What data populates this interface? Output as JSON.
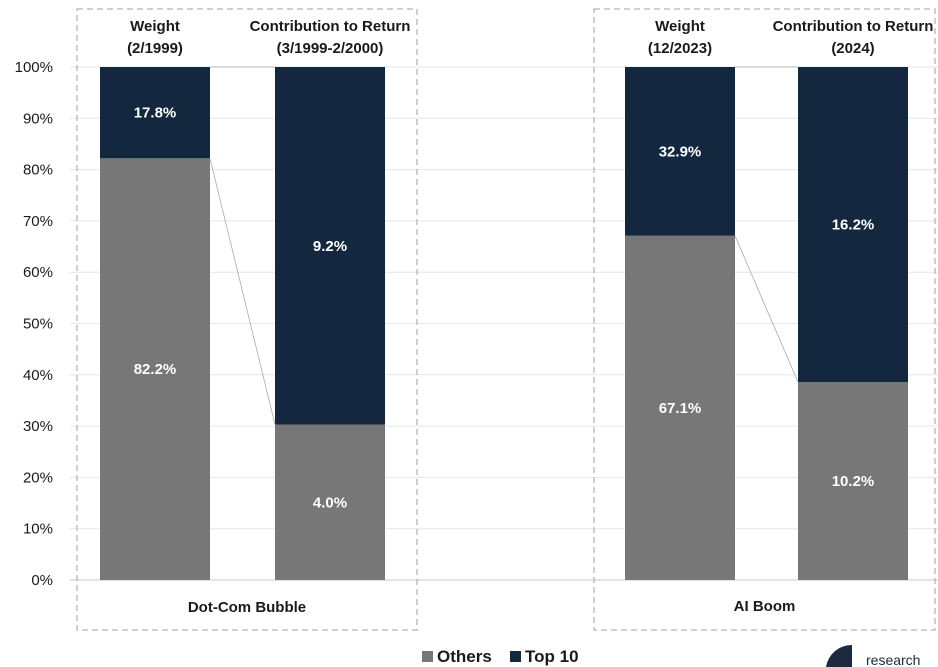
{
  "chart_data": {
    "type": "bar",
    "stacked": true,
    "ylim": [
      0,
      100
    ],
    "y_ticks": [
      "0%",
      "10%",
      "20%",
      "30%",
      "40%",
      "50%",
      "60%",
      "70%",
      "80%",
      "90%",
      "100%"
    ],
    "grid": true,
    "legend_position": "bottom-center",
    "series": [
      {
        "name": "Others",
        "color": "#777777"
      },
      {
        "name": "Top 10",
        "color": "#13283f"
      }
    ],
    "groups": [
      {
        "label": "Dot-Com Bubble",
        "bars": [
          {
            "header": [
              "Weight",
              "(2/1999)"
            ],
            "others": 82.2,
            "top10": 17.8,
            "others_label": "82.2%",
            "top10_label": "17.8%"
          },
          {
            "header": [
              "Contribution to Return",
              "(3/1999-2/2000)"
            ],
            "others": 30.3,
            "top10": 69.7,
            "others_label": "4.0%",
            "top10_label": "9.2%"
          }
        ]
      },
      {
        "label": "AI Boom",
        "bars": [
          {
            "header": [
              "Weight",
              "(12/2023)"
            ],
            "others": 67.1,
            "top10": 32.9,
            "others_label": "67.1%",
            "top10_label": "32.9%"
          },
          {
            "header": [
              "Contribution to Return",
              "(2024)"
            ],
            "others": 38.6,
            "top10": 61.4,
            "others_label": "10.2%",
            "top10_label": "16.2%"
          }
        ]
      }
    ]
  },
  "logo": {
    "text": "research"
  }
}
